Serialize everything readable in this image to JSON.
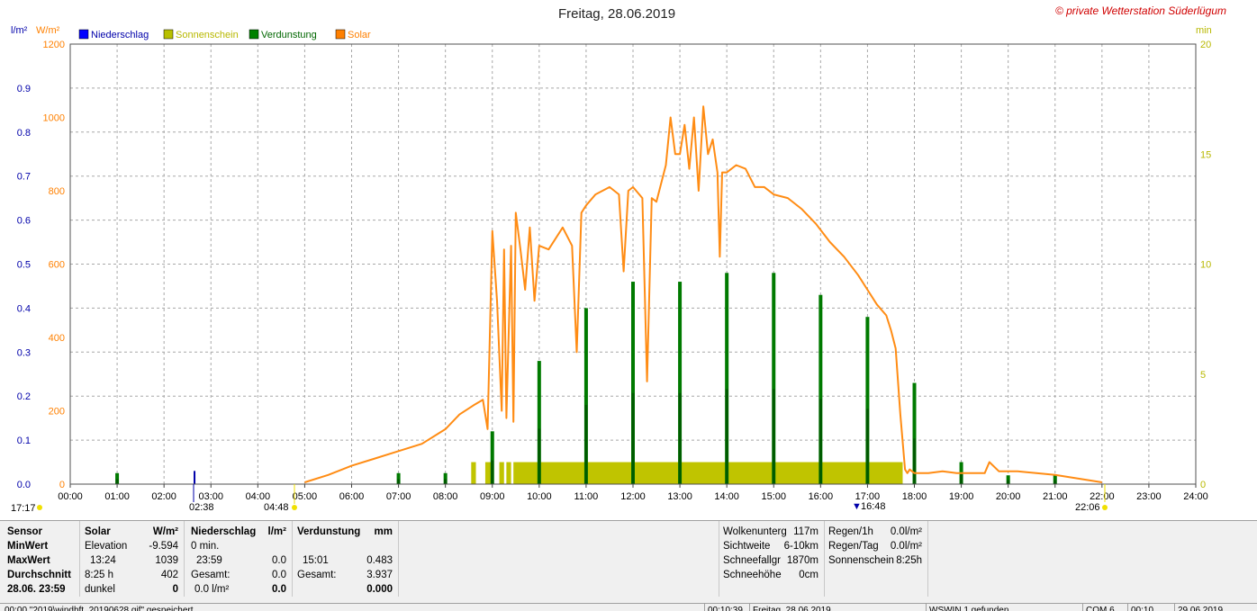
{
  "header": {
    "title": "Freitag, 28.06.2019",
    "station": "© private Wetterstation Süderlügum"
  },
  "units": {
    "left1": "l/m²",
    "left2": "W/m²",
    "right": "min"
  },
  "legend": [
    {
      "label": "Niederschlag",
      "color": "#0000ff"
    },
    {
      "label": "Sonnenschein",
      "color": "#b8c000"
    },
    {
      "label": "Verdunstung",
      "color": "#008000"
    },
    {
      "label": "Solar",
      "color": "#ff8000"
    }
  ],
  "colors": {
    "precip": "#0000aa",
    "solar": "#ff8c14",
    "sunshine": "#c0c400",
    "evap": "#007a00",
    "grid": "#a0a0a0",
    "rightAxis": "#b8b800"
  },
  "markers": {
    "sunrise_prev": "17:17",
    "moonrise": "02:38",
    "sunrise": "04:48",
    "peak": "16:48",
    "sunset": "22:06"
  },
  "chart_data": {
    "type": "line",
    "x_ticks": [
      "00:00",
      "01:00",
      "02:00",
      "03:00",
      "04:00",
      "05:00",
      "06:00",
      "07:00",
      "08:00",
      "09:00",
      "10:00",
      "11:00",
      "12:00",
      "13:00",
      "14:00",
      "15:00",
      "16:00",
      "17:00",
      "18:00",
      "19:00",
      "20:00",
      "21:00",
      "22:00",
      "23:00",
      "24:00"
    ],
    "axes": {
      "precip": {
        "label": "l/m²",
        "range": [
          0,
          1.0
        ],
        "ticks": [
          "0.0",
          "0.1",
          "0.2",
          "0.3",
          "0.4",
          "0.5",
          "0.6",
          "0.7",
          "0.8",
          "0.9"
        ]
      },
      "solar": {
        "label": "W/m²",
        "range": [
          0,
          1200
        ],
        "ticks": [
          "0",
          "200",
          "400",
          "600",
          "800",
          "1000",
          "1200"
        ]
      },
      "sunshine": {
        "label": "min",
        "range": [
          0,
          20
        ],
        "ticks": [
          "0",
          "5",
          "10",
          "15",
          "20"
        ]
      }
    },
    "solar_series": {
      "name": "Solar",
      "x": [
        5.0,
        5.5,
        6.0,
        6.5,
        7.0,
        7.5,
        8.0,
        8.3,
        8.6,
        8.8,
        8.9,
        9.0,
        9.1,
        9.2,
        9.25,
        9.3,
        9.4,
        9.45,
        9.5,
        9.6,
        9.7,
        9.8,
        9.9,
        10.0,
        10.2,
        10.5,
        10.7,
        10.8,
        10.9,
        11.0,
        11.2,
        11.5,
        11.7,
        11.8,
        11.9,
        12.0,
        12.2,
        12.3,
        12.4,
        12.5,
        12.7,
        12.8,
        12.9,
        13.0,
        13.1,
        13.2,
        13.3,
        13.4,
        13.5,
        13.6,
        13.7,
        13.8,
        13.85,
        13.9,
        14.0,
        14.2,
        14.4,
        14.6,
        14.8,
        15.0,
        15.3,
        15.6,
        15.9,
        16.2,
        16.5,
        16.8,
        17.0,
        17.2,
        17.4,
        17.5,
        17.6,
        17.7,
        17.8,
        17.85,
        17.9,
        18.0,
        18.3,
        18.6,
        18.9,
        19.2,
        19.5,
        19.6,
        19.8,
        20.2,
        20.6,
        21.0,
        21.5,
        22.0
      ],
      "y": [
        5,
        25,
        50,
        70,
        90,
        110,
        150,
        190,
        215,
        230,
        150,
        690,
        500,
        200,
        640,
        180,
        650,
        170,
        740,
        640,
        530,
        700,
        500,
        650,
        640,
        700,
        650,
        360,
        740,
        760,
        790,
        810,
        790,
        580,
        800,
        810,
        780,
        280,
        780,
        770,
        870,
        1000,
        900,
        900,
        980,
        860,
        1000,
        800,
        1030,
        900,
        940,
        850,
        620,
        850,
        850,
        870,
        860,
        810,
        810,
        790,
        780,
        750,
        710,
        660,
        620,
        570,
        530,
        490,
        460,
        420,
        370,
        190,
        40,
        30,
        40,
        30,
        30,
        35,
        30,
        30,
        30,
        60,
        35,
        35,
        30,
        25,
        15,
        5
      ]
    },
    "sunshine_series": {
      "name": "Sonnenschein",
      "bars": [
        [
          8.55,
          8.65,
          1.0
        ],
        [
          8.85,
          9.0,
          1.0
        ],
        [
          9.15,
          9.25,
          1.0
        ],
        [
          9.3,
          9.4,
          1.0
        ],
        [
          9.45,
          17.75,
          1.0
        ]
      ]
    },
    "evap_series": {
      "name": "Verdunstung",
      "bars": [
        [
          1.0,
          0.025
        ],
        [
          7.0,
          0.025
        ],
        [
          8.0,
          0.025
        ],
        [
          9.0,
          0.12
        ],
        [
          10.0,
          0.28
        ],
        [
          11.0,
          0.4
        ],
        [
          12.0,
          0.46
        ],
        [
          13.0,
          0.46
        ],
        [
          14.0,
          0.48
        ],
        [
          15.0,
          0.48
        ],
        [
          16.0,
          0.43
        ],
        [
          17.0,
          0.38
        ],
        [
          18.0,
          0.23
        ],
        [
          19.0,
          0.05
        ],
        [
          20.0,
          0.02
        ],
        [
          21.0,
          0.02
        ]
      ]
    },
    "precip_series": {
      "name": "Niederschlag",
      "bars": [
        [
          2.65,
          0.03
        ]
      ]
    }
  },
  "info": {
    "sensor": {
      "header": "Sensor",
      "min": "MinWert",
      "max": "MaxWert",
      "avg": "Durchschnitt",
      "date": "28.06. 23:59"
    },
    "solar": {
      "header": "Solar",
      "unit": "W/m²",
      "min_l": "Elevation",
      "min_v": "-9.594",
      "max_l": "13:24",
      "max_v": "1039",
      "avg_l": "8:25 h",
      "avg_v": "402",
      "last_l": "dunkel",
      "last_v": "0"
    },
    "precip": {
      "header": "Niederschlag",
      "unit": "l/m²",
      "min_l": "0 min.",
      "max_l": "23:59",
      "max_v": "0.0",
      "avg_l": "Gesamt:",
      "avg_v": "0.0",
      "last_l": "0.0 l/m²",
      "last_v": "0.0"
    },
    "evap": {
      "header": "Verdunstung",
      "unit": "mm",
      "max_l": "15:01",
      "max_v": "0.483",
      "avg_l": "Gesamt:",
      "avg_v": "3.937",
      "last_v": "0.000"
    },
    "weather": {
      "wolken_l": "Wolkenunterg",
      "wolken_v": "117m",
      "sicht_l": "Sichtweite",
      "sicht_v": "6-10km",
      "schnee_l": "Schneefallgr",
      "schnee_v": "1870m",
      "hoehe_l": "Schneehöhe",
      "hoehe_v": "0cm"
    },
    "rain": {
      "r1_l": "Regen/1h",
      "r1_v": "0.0l/m²",
      "rt_l": "Regen/Tag",
      "rt_v": "0.0l/m²",
      "sun_l": "Sonnenschein",
      "sun_v": "8:25h"
    }
  },
  "status": {
    "s1": "00:00 \"2019\\windhft_20190628.gif\" gespeichert",
    "s2": "00:10:39",
    "s3": "Freitag, 28.06.2019",
    "s4": "WSWIN 1 gefunden",
    "s5": "COM 6",
    "s6": "00:10",
    "s7": "29.06.2019"
  }
}
